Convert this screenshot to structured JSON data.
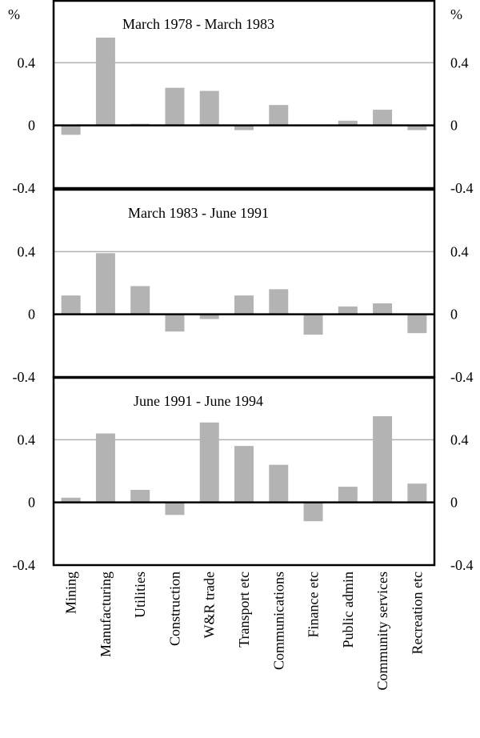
{
  "chart_data": {
    "type": "bar",
    "unit_label": "%",
    "categories": [
      "Mining",
      "Manufacturing",
      "Utilities",
      "Construction",
      "W&R trade",
      "Transport etc",
      "Communications",
      "Finance etc",
      "Public admin",
      "Community services",
      "Recreation etc"
    ],
    "ylim": [
      -0.4,
      0.8
    ],
    "yticks": [
      -0.4,
      0,
      0.4
    ],
    "ytick_labels": [
      "-0.4",
      "0",
      "0.4"
    ],
    "bar_color": "#b3b3b3",
    "grid": "horizontal at 0.4",
    "panels": [
      {
        "title": "March 1978 - March 1983",
        "values": [
          -0.06,
          0.56,
          0.01,
          0.24,
          0.22,
          -0.03,
          0.13,
          0.0,
          0.03,
          0.1,
          -0.03
        ]
      },
      {
        "title": "March 1983 - June 1991",
        "values": [
          0.12,
          0.39,
          0.18,
          -0.11,
          -0.03,
          0.12,
          0.16,
          -0.13,
          0.05,
          0.07,
          -0.12
        ]
      },
      {
        "title": "June 1991 - June 1994",
        "values": [
          0.03,
          0.44,
          0.08,
          -0.08,
          0.51,
          0.36,
          0.24,
          -0.12,
          0.1,
          0.55,
          0.12
        ]
      }
    ]
  }
}
